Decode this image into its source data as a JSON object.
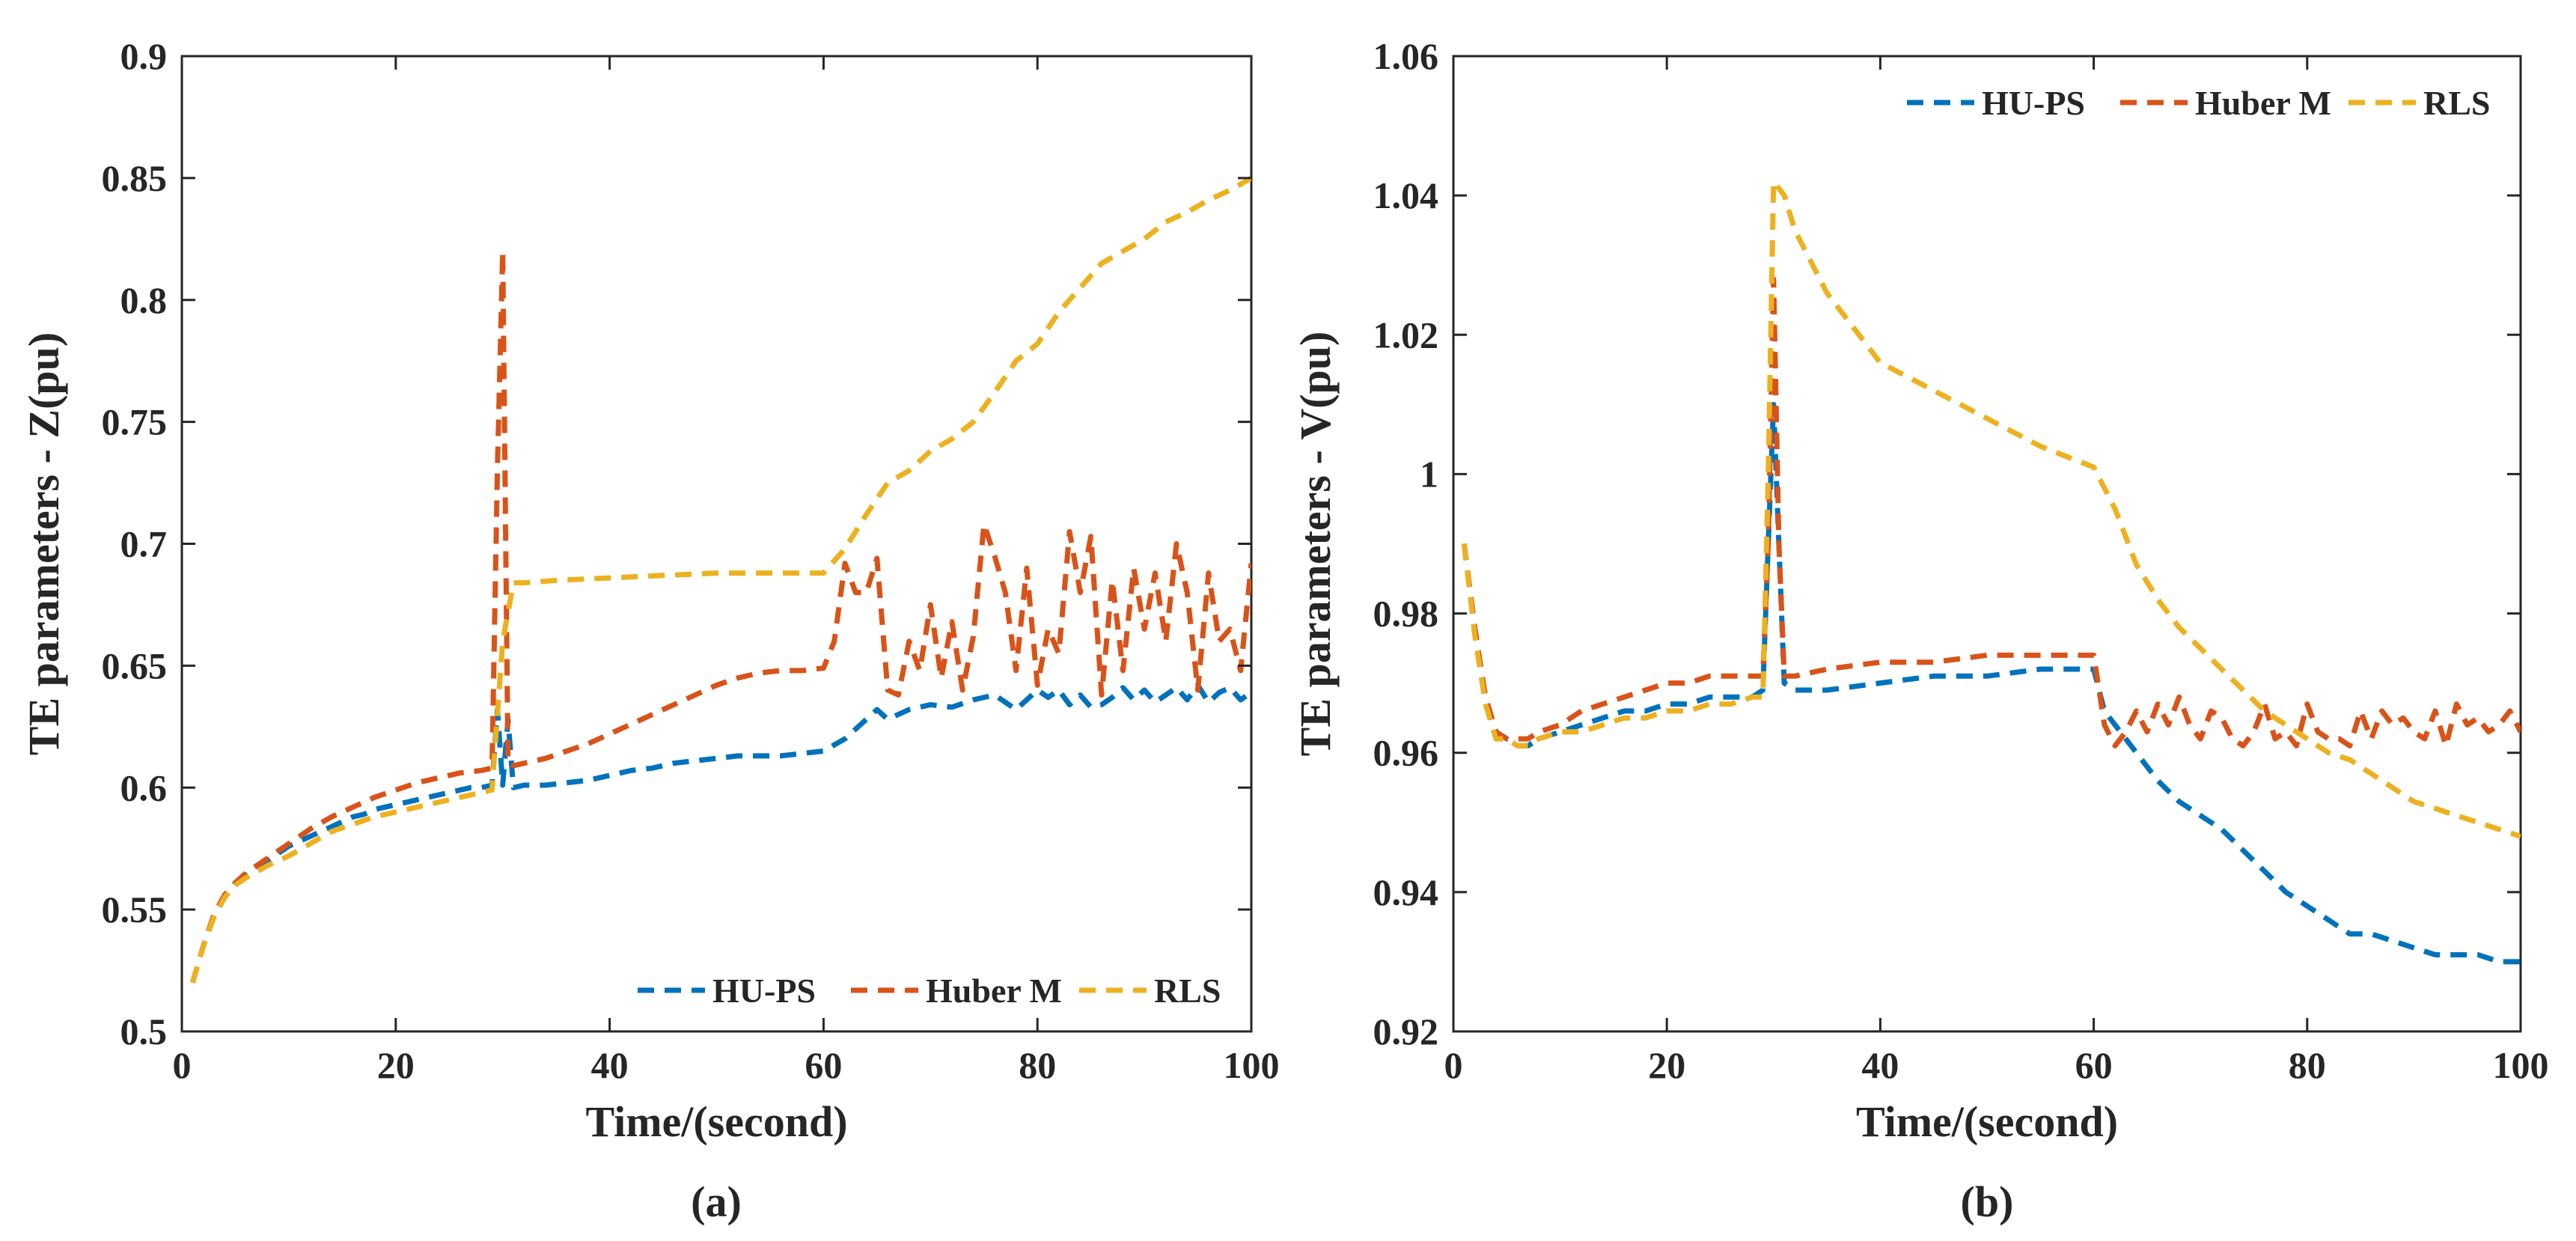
{
  "colors": {
    "hu_ps": "#0072BD",
    "huber_m": "#D95319",
    "rls": "#EDB120",
    "axis": "#262626"
  },
  "chart_data": [
    {
      "type": "line",
      "panel_label": "(a)",
      "xlabel": "Time/(second)",
      "ylabel": "TE parameters - Z(pu)",
      "xlim": [
        0,
        100
      ],
      "ylim": [
        0.5,
        0.9
      ],
      "xticks": [
        0,
        20,
        40,
        60,
        80,
        100
      ],
      "xtick_labels": [
        "0",
        "20",
        "40",
        "60",
        "80",
        "100"
      ],
      "yticks": [
        0.5,
        0.55,
        0.6,
        0.65,
        0.7,
        0.75,
        0.8,
        0.85,
        0.9
      ],
      "ytick_labels": [
        "0.5",
        "0.55",
        "0.6",
        "0.65",
        "0.7",
        "0.75",
        "0.8",
        "0.85",
        "0.9"
      ],
      "grid": false,
      "legend_position": "bottom-right",
      "series": [
        {
          "name": "HU-PS",
          "color_key": "hu_ps",
          "x": [
            1,
            2,
            3,
            4,
            5,
            6,
            7,
            8,
            9,
            10,
            11,
            12,
            13,
            14,
            15,
            16,
            17,
            18,
            19,
            20,
            21,
            22,
            23,
            24,
            25,
            26,
            27,
            28,
            29,
            29.5,
            30,
            30.5,
            31,
            32,
            34,
            36,
            38,
            40,
            42,
            44,
            46,
            48,
            50,
            52,
            54,
            56,
            58,
            60,
            62,
            64,
            65,
            66,
            68,
            70,
            72,
            74,
            76,
            77,
            78,
            80,
            81,
            82,
            83,
            84,
            85,
            86,
            87,
            88,
            89,
            90,
            91,
            92,
            93,
            94,
            95,
            96,
            97,
            98,
            99,
            100
          ],
          "y": [
            0.52,
            0.535,
            0.547,
            0.555,
            0.56,
            0.564,
            0.567,
            0.57,
            0.573,
            0.576,
            0.578,
            0.58,
            0.582,
            0.584,
            0.586,
            0.588,
            0.589,
            0.591,
            0.592,
            0.593,
            0.594,
            0.595,
            0.596,
            0.597,
            0.598,
            0.599,
            0.6,
            0.6,
            0.601,
            0.632,
            0.601,
            0.628,
            0.6,
            0.601,
            0.601,
            0.602,
            0.603,
            0.605,
            0.607,
            0.608,
            0.61,
            0.611,
            0.612,
            0.613,
            0.613,
            0.613,
            0.614,
            0.615,
            0.62,
            0.628,
            0.632,
            0.628,
            0.632,
            0.634,
            0.633,
            0.636,
            0.638,
            0.635,
            0.632,
            0.64,
            0.637,
            0.64,
            0.634,
            0.638,
            0.633,
            0.634,
            0.637,
            0.641,
            0.636,
            0.64,
            0.635,
            0.638,
            0.641,
            0.636,
            0.642,
            0.635,
            0.639,
            0.641,
            0.636,
            0.639
          ]
        },
        {
          "name": "Huber M",
          "color_key": "huber_m",
          "x": [
            1,
            2,
            3,
            4,
            5,
            6,
            7,
            8,
            9,
            10,
            12,
            14,
            15,
            16,
            17,
            18,
            20,
            22,
            24,
            26,
            28,
            29,
            29.5,
            30,
            30.5,
            31,
            32,
            34,
            36,
            38,
            40,
            42,
            44,
            46,
            48,
            50,
            52,
            54,
            56,
            58,
            60,
            61,
            62,
            63,
            64,
            65,
            66,
            67,
            68,
            69,
            70,
            71,
            72,
            73,
            74,
            75,
            76,
            77,
            78,
            79,
            80,
            81,
            82,
            83,
            84,
            85,
            86,
            87,
            88,
            89,
            90,
            91,
            92,
            93,
            94,
            95,
            96,
            97,
            98,
            99,
            100
          ],
          "y": [
            0.52,
            0.535,
            0.548,
            0.556,
            0.561,
            0.565,
            0.568,
            0.571,
            0.574,
            0.577,
            0.583,
            0.588,
            0.59,
            0.592,
            0.594,
            0.596,
            0.599,
            0.602,
            0.604,
            0.606,
            0.607,
            0.608,
            0.73,
            0.82,
            0.61,
            0.609,
            0.61,
            0.612,
            0.615,
            0.618,
            0.622,
            0.626,
            0.63,
            0.634,
            0.638,
            0.642,
            0.645,
            0.647,
            0.648,
            0.648,
            0.649,
            0.66,
            0.692,
            0.68,
            0.68,
            0.694,
            0.64,
            0.638,
            0.66,
            0.648,
            0.675,
            0.645,
            0.668,
            0.64,
            0.662,
            0.708,
            0.695,
            0.68,
            0.648,
            0.69,
            0.642,
            0.665,
            0.655,
            0.705,
            0.68,
            0.703,
            0.638,
            0.685,
            0.648,
            0.69,
            0.665,
            0.688,
            0.66,
            0.7,
            0.68,
            0.64,
            0.688,
            0.66,
            0.665,
            0.648,
            0.692
          ]
        },
        {
          "name": "RLS",
          "color_key": "rls",
          "x": [
            1,
            2,
            3,
            4,
            5,
            6,
            8,
            10,
            12,
            14,
            16,
            18,
            20,
            22,
            24,
            26,
            28,
            29,
            29.5,
            30,
            31,
            32,
            35,
            40,
            45,
            50,
            55,
            60,
            62,
            64,
            66,
            68,
            70,
            72,
            74,
            76,
            78,
            80,
            82,
            84,
            86,
            88,
            90,
            92,
            94,
            96,
            98,
            100
          ],
          "y": [
            0.52,
            0.535,
            0.547,
            0.555,
            0.56,
            0.563,
            0.568,
            0.572,
            0.577,
            0.582,
            0.585,
            0.588,
            0.59,
            0.592,
            0.594,
            0.596,
            0.598,
            0.599,
            0.63,
            0.66,
            0.684,
            0.684,
            0.685,
            0.686,
            0.687,
            0.688,
            0.688,
            0.688,
            0.698,
            0.712,
            0.725,
            0.73,
            0.738,
            0.743,
            0.75,
            0.762,
            0.775,
            0.782,
            0.795,
            0.805,
            0.815,
            0.82,
            0.825,
            0.832,
            0.836,
            0.841,
            0.845,
            0.85
          ]
        }
      ]
    },
    {
      "type": "line",
      "panel_label": "(b)",
      "xlabel": "Time/(second)",
      "ylabel": "TE parameters - V(pu)",
      "xlim": [
        0,
        100
      ],
      "ylim": [
        0.92,
        1.06
      ],
      "xticks": [
        0,
        20,
        40,
        60,
        80,
        100
      ],
      "xtick_labels": [
        "0",
        "20",
        "40",
        "60",
        "80",
        "100"
      ],
      "yticks": [
        0.92,
        0.94,
        0.96,
        0.98,
        1.0,
        1.02,
        1.04,
        1.06
      ],
      "ytick_labels": [
        "0.92",
        "0.94",
        "0.96",
        "0.98",
        "1",
        "1.02",
        "1.04",
        "1.06"
      ],
      "grid": false,
      "legend_position": "top-right",
      "series": [
        {
          "name": "HU-PS",
          "color_key": "hu_ps",
          "x": [
            1,
            2,
            3,
            4,
            5,
            6,
            7,
            8,
            10,
            12,
            14,
            16,
            18,
            20,
            22,
            24,
            26,
            28,
            29,
            29.5,
            30,
            30.5,
            31,
            32,
            35,
            40,
            45,
            50,
            55,
            60,
            61,
            62,
            64,
            66,
            68,
            70,
            72,
            74,
            76,
            78,
            80,
            82,
            84,
            86,
            88,
            90,
            92,
            94,
            96,
            98,
            100
          ],
          "y": [
            0.99,
            0.978,
            0.968,
            0.963,
            0.962,
            0.961,
            0.961,
            0.962,
            0.963,
            0.964,
            0.965,
            0.966,
            0.966,
            0.967,
            0.967,
            0.968,
            0.968,
            0.968,
            0.969,
            0.99,
            1.01,
            0.99,
            0.97,
            0.969,
            0.969,
            0.97,
            0.971,
            0.971,
            0.972,
            0.972,
            0.966,
            0.964,
            0.96,
            0.956,
            0.953,
            0.951,
            0.949,
            0.946,
            0.943,
            0.94,
            0.938,
            0.936,
            0.934,
            0.934,
            0.933,
            0.932,
            0.931,
            0.931,
            0.931,
            0.93,
            0.93
          ]
        },
        {
          "name": "Huber M",
          "color_key": "huber_m",
          "x": [
            1,
            2,
            3,
            4,
            5,
            6,
            7,
            8,
            10,
            12,
            14,
            16,
            18,
            20,
            22,
            24,
            26,
            28,
            29,
            29.5,
            30,
            30.5,
            31,
            32,
            35,
            40,
            45,
            50,
            55,
            60,
            61,
            62,
            63,
            64,
            65,
            66,
            67,
            68,
            69,
            70,
            71,
            72,
            73,
            74,
            75,
            76,
            77,
            78,
            79,
            80,
            81,
            82,
            83,
            84,
            85,
            86,
            87,
            88,
            89,
            90,
            91,
            92,
            93,
            94,
            95,
            96,
            97,
            98,
            99,
            100
          ],
          "y": [
            0.99,
            0.978,
            0.968,
            0.963,
            0.962,
            0.962,
            0.962,
            0.963,
            0.964,
            0.966,
            0.967,
            0.968,
            0.969,
            0.97,
            0.97,
            0.971,
            0.971,
            0.971,
            0.971,
            0.99,
            1.028,
            0.99,
            0.971,
            0.971,
            0.972,
            0.973,
            0.973,
            0.974,
            0.974,
            0.974,
            0.964,
            0.961,
            0.963,
            0.966,
            0.963,
            0.967,
            0.964,
            0.968,
            0.964,
            0.962,
            0.966,
            0.965,
            0.962,
            0.961,
            0.963,
            0.967,
            0.962,
            0.963,
            0.961,
            0.967,
            0.963,
            0.962,
            0.962,
            0.961,
            0.966,
            0.962,
            0.966,
            0.964,
            0.965,
            0.963,
            0.962,
            0.966,
            0.961,
            0.967,
            0.964,
            0.965,
            0.963,
            0.964,
            0.966,
            0.963
          ]
        },
        {
          "name": "RLS",
          "color_key": "rls",
          "x": [
            1,
            2,
            3,
            4,
            5,
            6,
            7,
            8,
            10,
            12,
            14,
            16,
            18,
            20,
            22,
            24,
            26,
            28,
            29,
            29.5,
            30,
            31,
            32,
            35,
            40,
            45,
            50,
            55,
            60,
            62,
            64,
            66,
            68,
            70,
            72,
            74,
            76,
            78,
            80,
            82,
            84,
            86,
            88,
            90,
            92,
            94,
            96,
            98,
            100
          ],
          "y": [
            0.99,
            0.977,
            0.967,
            0.962,
            0.962,
            0.961,
            0.961,
            0.962,
            0.963,
            0.963,
            0.964,
            0.965,
            0.965,
            0.966,
            0.966,
            0.967,
            0.967,
            0.968,
            0.968,
            1.0,
            1.042,
            1.04,
            1.035,
            1.026,
            1.016,
            1.012,
            1.008,
            1.004,
            1.001,
            0.995,
            0.987,
            0.982,
            0.978,
            0.975,
            0.972,
            0.969,
            0.966,
            0.964,
            0.962,
            0.96,
            0.959,
            0.957,
            0.955,
            0.953,
            0.952,
            0.951,
            0.95,
            0.949,
            0.948
          ]
        }
      ]
    }
  ]
}
